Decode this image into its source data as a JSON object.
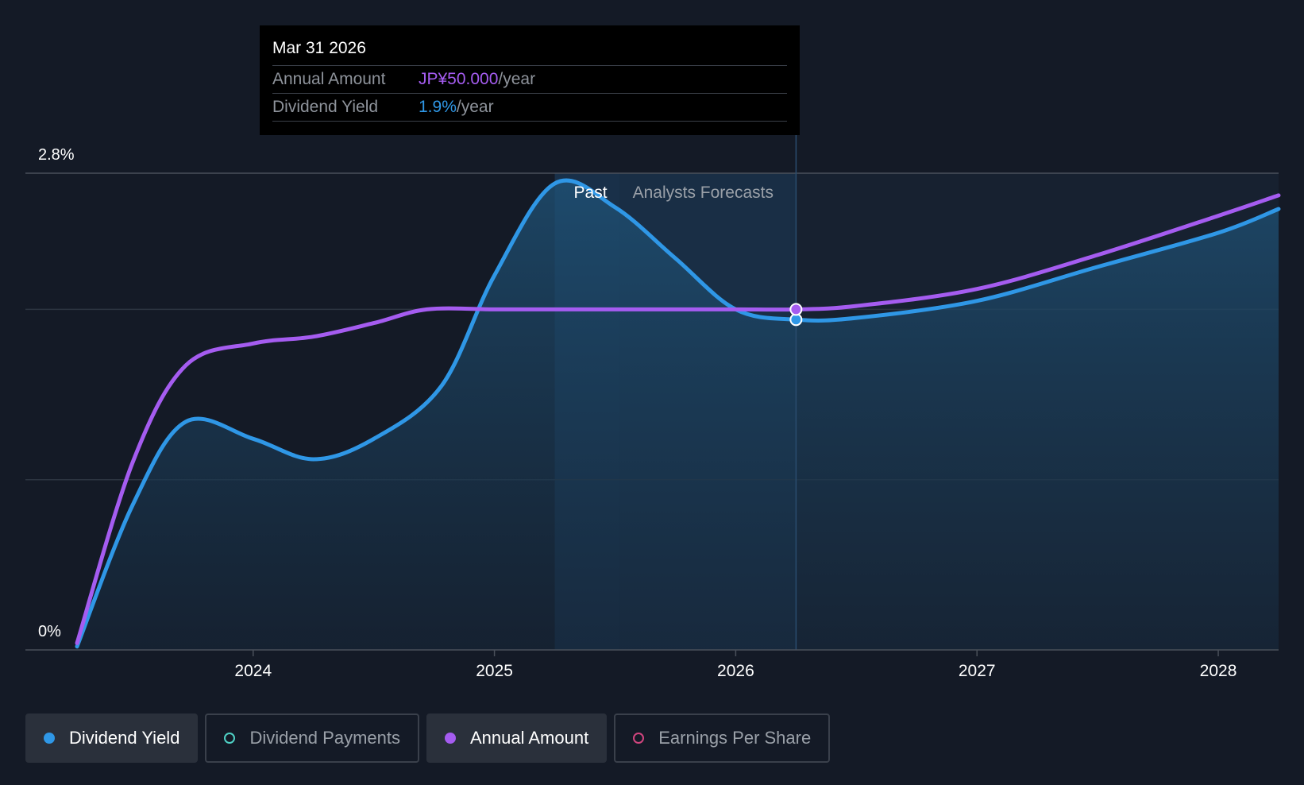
{
  "tooltip": {
    "date": "Mar 31 2026",
    "annual_label": "Annual Amount",
    "annual_value": "JP¥50.000",
    "annual_unit": "/year",
    "yield_label": "Dividend Yield",
    "yield_value": "1.9%",
    "yield_unit": "/year"
  },
  "legend": [
    {
      "label": "Dividend Yield",
      "color": "#2f97e6",
      "active": true,
      "filled": true
    },
    {
      "label": "Dividend Payments",
      "color": "#4fd1c5",
      "active": false,
      "filled": false
    },
    {
      "label": "Annual Amount",
      "color": "#a55cf0",
      "active": true,
      "filled": true
    },
    {
      "label": "Earnings Per Share",
      "color": "#d0457e",
      "active": false,
      "filled": false
    }
  ],
  "chart_data": {
    "type": "line",
    "title": "",
    "xlabel": "",
    "ylabel": "",
    "ylim": [
      0,
      2.8
    ],
    "xlim": [
      2023.27,
      2028.25
    ],
    "y_tick_labels": [
      "0%",
      "2.8%"
    ],
    "x_tick_labels": [
      "2024",
      "2025",
      "2026",
      "2027",
      "2028"
    ],
    "x_ticks": [
      2024,
      2025,
      2026,
      2027,
      2028
    ],
    "past_label": "Past",
    "forecast_label": "Analysts Forecasts",
    "past_region": [
      2025.25,
      2025.52
    ],
    "forecast_start": 2025.52,
    "highlight_x": 2026.25,
    "series": [
      {
        "name": "Dividend Yield",
        "color": "#2f97e6",
        "x": [
          2023.27,
          2023.5,
          2023.72,
          2024.0,
          2024.25,
          2024.5,
          2024.78,
          2025.0,
          2025.25,
          2025.5,
          2025.75,
          2026.0,
          2026.25,
          2026.5,
          2027.0,
          2027.5,
          2028.0,
          2028.25
        ],
        "values": [
          0.02,
          0.85,
          1.34,
          1.24,
          1.12,
          1.24,
          1.55,
          2.2,
          2.74,
          2.6,
          2.3,
          2.0,
          1.94,
          1.95,
          2.05,
          2.25,
          2.45,
          2.59
        ]
      },
      {
        "name": "Annual Amount",
        "color": "#a55cf0",
        "x": [
          2023.27,
          2023.5,
          2023.72,
          2024.0,
          2024.25,
          2024.5,
          2024.72,
          2025.0,
          2025.25,
          2025.5,
          2025.75,
          2026.0,
          2026.25,
          2026.5,
          2027.0,
          2027.5,
          2028.0,
          2028.25
        ],
        "values": [
          0.04,
          1.1,
          1.67,
          1.8,
          1.84,
          1.92,
          2.0,
          2.0,
          2.0,
          2.0,
          2.0,
          2.0,
          2.0,
          2.02,
          2.12,
          2.32,
          2.55,
          2.67
        ]
      }
    ]
  }
}
